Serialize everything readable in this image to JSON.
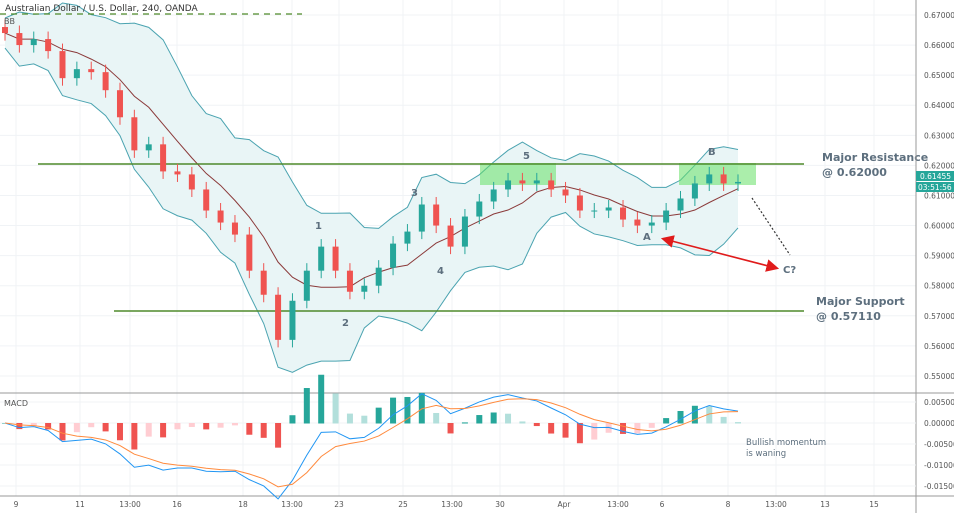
{
  "header": {
    "title": "Australian Dollar / U.S. Dollar, 240, OANDA",
    "indicator_bb": "BB",
    "indicator_macd": "MACD"
  },
  "price_badge": {
    "value": "0.61455",
    "countdown": "03:51:56",
    "color": "#26a69a"
  },
  "colors": {
    "up": "#26a69a",
    "down": "#ef5350",
    "band": "#4aa3b0",
    "band_fill": "#e9f5f6",
    "ma": "#8b3a3a",
    "level": "#4f8a2b",
    "zone": "#66e066",
    "macd": "#2196f3",
    "signal": "#ff8a3d",
    "arrow": "#e01b1b"
  },
  "chart_data": {
    "type": "candlestick",
    "ylim": [
      0.545,
      0.672
    ],
    "y_ticks": [
      "0.67000",
      "0.66000",
      "0.65000",
      "0.64000",
      "0.63000",
      "0.62000",
      "0.61000",
      "0.60000",
      "0.59000",
      "0.58000",
      "0.57000",
      "0.56000",
      "0.55000"
    ],
    "x_ticks": [
      "9",
      "11",
      "13:00",
      "16",
      "18",
      "13:00",
      "23",
      "25",
      "13:00",
      "30",
      "Apr",
      "13:00",
      "6",
      "8",
      "13:00",
      "13",
      "15"
    ],
    "closes": [
      0.664,
      0.66,
      0.662,
      0.658,
      0.649,
      0.652,
      0.651,
      0.645,
      0.636,
      0.625,
      0.627,
      0.618,
      0.617,
      0.612,
      0.605,
      0.601,
      0.597,
      0.585,
      0.577,
      0.562,
      0.575,
      0.585,
      0.593,
      0.585,
      0.578,
      0.58,
      0.586,
      0.594,
      0.598,
      0.607,
      0.6,
      0.593,
      0.603,
      0.608,
      0.612,
      0.615,
      0.614,
      0.615,
      0.612,
      0.61,
      0.605,
      0.605,
      0.606,
      0.602,
      0.6,
      0.601,
      0.605,
      0.609,
      0.614,
      0.617,
      0.614,
      0.6145
    ],
    "levels": [
      {
        "label": "Major Resistance",
        "value_label": "@ 0.62000",
        "price": 0.62
      },
      {
        "label": "Major Support",
        "value_label": "@ 0.57110",
        "price": 0.5711
      }
    ],
    "waves": [
      "1",
      "2",
      "3",
      "4",
      "5",
      "A",
      "B",
      "C?"
    ],
    "macd_ticks": [
      "0.00500",
      "0.00000",
      "-0.00500",
      "-0.01000",
      "-0.01500"
    ],
    "macd_ylim": [
      -0.017,
      0.0065
    ],
    "macd_note": [
      "Bullish momentum",
      "is waning"
    ]
  }
}
